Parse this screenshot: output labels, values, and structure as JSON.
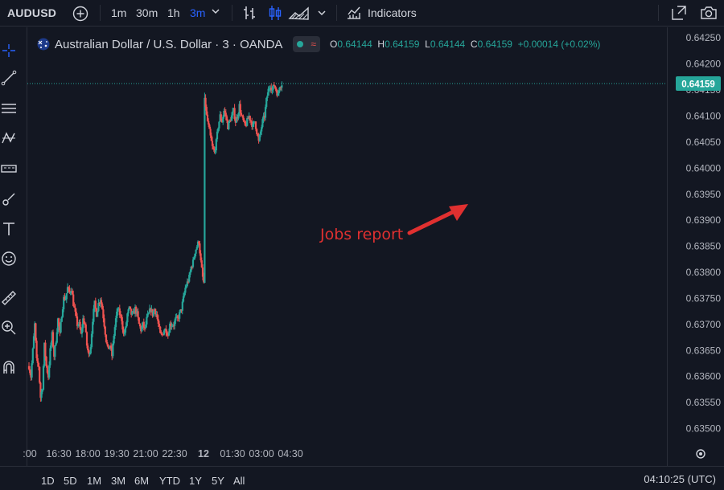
{
  "toolbar": {
    "symbol": "AUDUSD",
    "timeframes": [
      "1m",
      "30m",
      "1h",
      "3m"
    ],
    "active_timeframe": "3m",
    "indicators_label": "Indicators"
  },
  "legend": {
    "title": "Australian Dollar / U.S. Dollar · 3 · OANDA",
    "o_key": "O",
    "o_val": "0.64144",
    "h_key": "H",
    "h_val": "0.64159",
    "l_key": "L",
    "l_val": "0.64144",
    "c_key": "C",
    "c_val": "0.64159",
    "change": "+0.00014 (+0.02%)"
  },
  "bottom": {
    "ranges": [
      "1D",
      "5D",
      "1M",
      "3M",
      "6M",
      "YTD",
      "1Y",
      "5Y",
      "All"
    ],
    "clock": "04:10:25 (UTC)"
  },
  "colors": {
    "background": "#131722",
    "up": "#26a69a",
    "down": "#ef5350",
    "annotation": "#e03030"
  },
  "chart_data": {
    "type": "candlestick",
    "title": "Australian Dollar / U.S. Dollar · 3 · OANDA",
    "x_tick_labels": [
      ":00",
      "16:30",
      "18:00",
      "19:30",
      "21:00",
      "22:30",
      "12",
      "01:30",
      "03:00",
      "04:30"
    ],
    "y_tick_labels": [
      "0.63500",
      "0.63550",
      "0.63600",
      "0.63650",
      "0.63700",
      "0.63750",
      "0.63800",
      "0.63850",
      "0.63900",
      "0.63950",
      "0.64000",
      "0.64050",
      "0.64100",
      "0.64150",
      "0.64200",
      "0.64250"
    ],
    "ylim": [
      0.63487,
      0.64255
    ],
    "last_price_label": "0.64159",
    "last_price": 0.64159,
    "annotation": "Jobs report",
    "close_path": [
      [
        "15:00",
        0.6362
      ],
      [
        "15:06",
        0.636
      ],
      [
        "15:12",
        0.6365
      ],
      [
        "15:18",
        0.637
      ],
      [
        "15:24",
        0.6363
      ],
      [
        "15:30",
        0.6362
      ],
      [
        "15:36",
        0.6356
      ],
      [
        "15:42",
        0.6358
      ],
      [
        "15:48",
        0.6366
      ],
      [
        "15:54",
        0.6362
      ],
      [
        "16:00",
        0.636
      ],
      [
        "16:06",
        0.6365
      ],
      [
        "16:12",
        0.6368
      ],
      [
        "16:18",
        0.6364
      ],
      [
        "16:24",
        0.6367
      ],
      [
        "16:30",
        0.6371
      ],
      [
        "16:36",
        0.6368
      ],
      [
        "16:42",
        0.6372
      ],
      [
        "16:48",
        0.6375
      ],
      [
        "16:54",
        0.6375
      ],
      [
        "17:00",
        0.6377
      ],
      [
        "17:06",
        0.6376
      ],
      [
        "17:12",
        0.6377
      ],
      [
        "17:18",
        0.6374
      ],
      [
        "17:24",
        0.6372
      ],
      [
        "17:30",
        0.637
      ],
      [
        "17:36",
        0.637
      ],
      [
        "17:42",
        0.6368
      ],
      [
        "17:48",
        0.6371
      ],
      [
        "17:54",
        0.637
      ],
      [
        "18:00",
        0.6366
      ],
      [
        "18:06",
        0.6364
      ],
      [
        "18:12",
        0.6366
      ],
      [
        "18:18",
        0.6371
      ],
      [
        "18:24",
        0.6374
      ],
      [
        "18:30",
        0.6372
      ],
      [
        "18:36",
        0.6374
      ],
      [
        "18:42",
        0.6375
      ],
      [
        "18:48",
        0.6373
      ],
      [
        "18:54",
        0.637
      ],
      [
        "19:00",
        0.6367
      ],
      [
        "19:06",
        0.6365
      ],
      [
        "19:12",
        0.6366
      ],
      [
        "19:18",
        0.6364
      ],
      [
        "19:24",
        0.6368
      ],
      [
        "19:30",
        0.6371
      ],
      [
        "19:36",
        0.6373
      ],
      [
        "19:42",
        0.6372
      ],
      [
        "19:48",
        0.6371
      ],
      [
        "19:54",
        0.6368
      ],
      [
        "20:00",
        0.6369
      ],
      [
        "20:06",
        0.6372
      ],
      [
        "20:12",
        0.6373
      ],
      [
        "20:18",
        0.6372
      ],
      [
        "20:24",
        0.6372
      ],
      [
        "20:30",
        0.6373
      ],
      [
        "20:36",
        0.6372
      ],
      [
        "20:42",
        0.637
      ],
      [
        "20:48",
        0.6369
      ],
      [
        "20:54",
        0.637
      ],
      [
        "21:00",
        0.6369
      ],
      [
        "21:06",
        0.6371
      ],
      [
        "21:12",
        0.6372
      ],
      [
        "21:18",
        0.6373
      ],
      [
        "21:24",
        0.6372
      ],
      [
        "21:30",
        0.6373
      ],
      [
        "21:36",
        0.6372
      ],
      [
        "21:42",
        0.637
      ],
      [
        "21:48",
        0.6368
      ],
      [
        "21:54",
        0.6368
      ],
      [
        "22:00",
        0.6369
      ],
      [
        "22:06",
        0.6369
      ],
      [
        "22:12",
        0.6368
      ],
      [
        "22:18",
        0.637
      ],
      [
        "22:24",
        0.637
      ],
      [
        "22:30",
        0.637
      ],
      [
        "22:36",
        0.6371
      ],
      [
        "22:42",
        0.6371
      ],
      [
        "22:48",
        0.6372
      ],
      [
        "22:54",
        0.6373
      ],
      [
        "23:00",
        0.6375
      ],
      [
        "23:06",
        0.6377
      ],
      [
        "23:12",
        0.6378
      ],
      [
        "23:18",
        0.6379
      ],
      [
        "23:24",
        0.6381
      ],
      [
        "23:30",
        0.6382
      ],
      [
        "23:36",
        0.6384
      ],
      [
        "23:42",
        0.6385
      ],
      [
        "23:48",
        0.6386
      ],
      [
        "23:54",
        0.6382
      ],
      [
        "00:00",
        0.6379
      ],
      [
        "00:03",
        0.6378
      ],
      [
        "00:06",
        0.6414
      ],
      [
        "00:12",
        0.641
      ],
      [
        "00:18",
        0.6408
      ],
      [
        "00:24",
        0.6406
      ],
      [
        "00:30",
        0.6404
      ],
      [
        "00:36",
        0.6403
      ],
      [
        "00:42",
        0.6405
      ],
      [
        "00:48",
        0.6408
      ],
      [
        "00:54",
        0.641
      ],
      [
        "01:00",
        0.6409
      ],
      [
        "01:06",
        0.6411
      ],
      [
        "01:12",
        0.641
      ],
      [
        "01:18",
        0.6408
      ],
      [
        "01:24",
        0.6409
      ],
      [
        "01:30",
        0.641
      ],
      [
        "01:36",
        0.6411
      ],
      [
        "01:42",
        0.6409
      ],
      [
        "01:48",
        0.641
      ],
      [
        "01:54",
        0.6412
      ],
      [
        "02:00",
        0.641
      ],
      [
        "02:06",
        0.6409
      ],
      [
        "02:12",
        0.6408
      ],
      [
        "02:18",
        0.6409
      ],
      [
        "02:24",
        0.641
      ],
      [
        "02:30",
        0.6409
      ],
      [
        "02:36",
        0.6408
      ],
      [
        "02:42",
        0.6409
      ],
      [
        "02:48",
        0.6407
      ],
      [
        "02:54",
        0.6405
      ],
      [
        "03:00",
        0.6407
      ],
      [
        "03:06",
        0.6409
      ],
      [
        "03:12",
        0.641
      ],
      [
        "03:18",
        0.6413
      ],
      [
        "03:24",
        0.6415
      ],
      [
        "03:30",
        0.6416
      ],
      [
        "03:36",
        0.6415
      ],
      [
        "03:42",
        0.6416
      ],
      [
        "03:48",
        0.6415
      ],
      [
        "03:54",
        0.6414
      ],
      [
        "04:00",
        0.6416
      ],
      [
        "04:06",
        0.6416
      ]
    ]
  }
}
